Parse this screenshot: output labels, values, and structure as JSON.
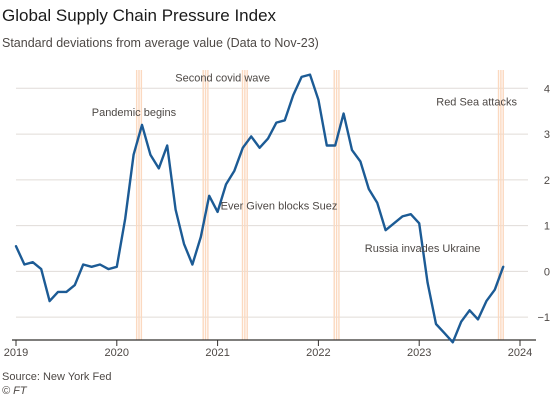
{
  "header": {
    "title": "Global Supply Chain Pressure Index",
    "subtitle": "Standard deviations from average value (Data to Nov-23)"
  },
  "footer": {
    "source": "Source: New York Fed",
    "credit": "© FT"
  },
  "colors": {
    "line": "#1c5b95",
    "band": "#fbd9c0",
    "grid": "#e0dcd8",
    "axis": "#33302e",
    "text": "#4d4845"
  },
  "chart_data": {
    "type": "line",
    "title": "Global Supply Chain Pressure Index",
    "subtitle": "Standard deviations from average value (Data to Nov-23)",
    "xlabel": "",
    "ylabel": "",
    "ylim": [
      -1.5,
      4.4
    ],
    "yticks": [
      4,
      3,
      2,
      1,
      0,
      -1
    ],
    "xticks": [
      2019,
      2020,
      2021,
      2022,
      2023,
      2024
    ],
    "xlim": [
      2019.0,
      2024.0
    ],
    "grid": true,
    "series": [
      {
        "name": "",
        "x": [
          2019.0,
          2019.083,
          2019.167,
          2019.25,
          2019.333,
          2019.417,
          2019.5,
          2019.583,
          2019.667,
          2019.75,
          2019.833,
          2019.917,
          2020.0,
          2020.083,
          2020.167,
          2020.25,
          2020.333,
          2020.417,
          2020.5,
          2020.583,
          2020.667,
          2020.75,
          2020.833,
          2020.917,
          2021.0,
          2021.083,
          2021.167,
          2021.25,
          2021.333,
          2021.417,
          2021.5,
          2021.583,
          2021.667,
          2021.75,
          2021.833,
          2021.917,
          2022.0,
          2022.083,
          2022.167,
          2022.25,
          2022.333,
          2022.417,
          2022.5,
          2022.583,
          2022.667,
          2022.75,
          2022.833,
          2022.917,
          2023.0,
          2023.083,
          2023.167,
          2023.25,
          2023.333,
          2023.417,
          2023.5,
          2023.583,
          2023.667,
          2023.75,
          2023.833
        ],
        "values": [
          0.55,
          0.15,
          0.2,
          0.05,
          -0.65,
          -0.45,
          -0.45,
          -0.3,
          0.15,
          0.1,
          0.15,
          0.05,
          0.1,
          1.15,
          2.55,
          3.2,
          2.55,
          2.25,
          2.75,
          1.35,
          0.6,
          0.15,
          0.75,
          1.65,
          1.3,
          1.9,
          2.2,
          2.7,
          2.95,
          2.7,
          2.9,
          3.25,
          3.3,
          3.85,
          4.25,
          4.3,
          3.75,
          2.75,
          2.75,
          3.45,
          2.65,
          2.4,
          1.8,
          1.5,
          0.9,
          1.05,
          1.2,
          1.25,
          1.05,
          -0.25,
          -1.15,
          -1.35,
          -1.55,
          -1.1,
          -0.85,
          -1.05,
          -0.65,
          -0.4,
          0.1
        ]
      }
    ],
    "bands": [
      {
        "start": 2020.19,
        "end": 2020.26
      },
      {
        "start": 2020.85,
        "end": 2020.92
      },
      {
        "start": 2021.24,
        "end": 2021.31
      },
      {
        "start": 2022.15,
        "end": 2022.22
      },
      {
        "start": 2023.78,
        "end": 2023.85
      }
    ],
    "annotations": [
      {
        "text": "Pandemic begins",
        "x": 2020.17,
        "y": 3.4,
        "anchor": "middle"
      },
      {
        "text": "Second covid wave",
        "x": 2020.58,
        "y": 4.15,
        "anchor": "start"
      },
      {
        "text": "Ever Given blocks Suez",
        "x": 2021.03,
        "y": 1.35,
        "anchor": "start"
      },
      {
        "text": "Russia invades Ukraine",
        "x": 2022.46,
        "y": 0.42,
        "anchor": "start"
      },
      {
        "text": "Red Sea attacks",
        "x": 2023.97,
        "y": 3.62,
        "anchor": "end"
      }
    ]
  }
}
